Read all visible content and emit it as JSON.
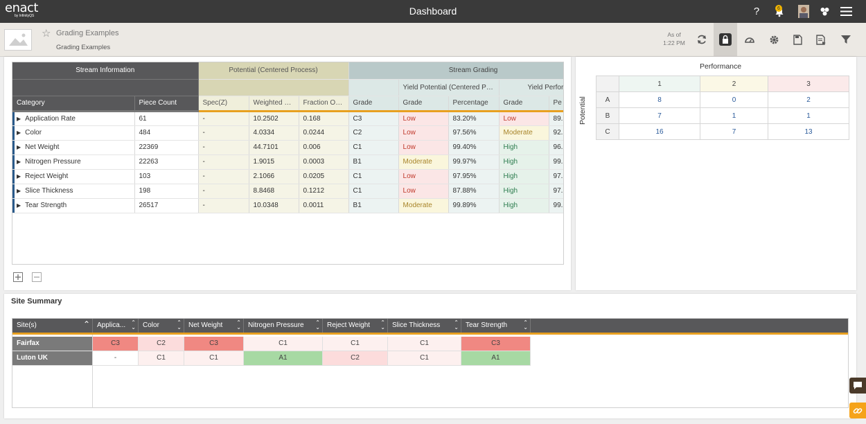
{
  "topbar": {
    "logo_text": "enact",
    "logo_sub": "by InfinityQS",
    "title": "Dashboard",
    "help": "?",
    "notification_count": "6"
  },
  "subheader": {
    "title": "Grading Examples",
    "subtitle": "Grading Examples",
    "as_of_label": "As of",
    "as_of_time": "1:22 PM"
  },
  "grid": {
    "groups": {
      "stream_info": "Stream Information",
      "potential": "Potential (Centered Process)",
      "stream_grading": "Stream Grading",
      "yield_potential": "Yield Potential (Centered Proc...",
      "yield_perf": "Yield Perform"
    },
    "columns": [
      "Category",
      "Piece Count",
      "Spec(Z)",
      "Weighted Fr...",
      "Fraction OOS",
      "Grade",
      "Grade",
      "Percentage",
      "Grade",
      "Pe"
    ],
    "rows": [
      [
        "Application Rate",
        "61",
        "-",
        "10.2502",
        "0.168",
        "C3",
        "Low",
        "83.20%",
        "Low",
        "89."
      ],
      [
        "Color",
        "484",
        "-",
        "4.0334",
        "0.0244",
        "C2",
        "Low",
        "97.56%",
        "Moderate",
        "92."
      ],
      [
        "Net Weight",
        "22369",
        "-",
        "44.7101",
        "0.006",
        "C1",
        "Low",
        "99.40%",
        "High",
        "96."
      ],
      [
        "Nitrogen Pressure",
        "22263",
        "-",
        "1.9015",
        "0.0003",
        "B1",
        "Moderate",
        "99.97%",
        "High",
        "99."
      ],
      [
        "Reject Weight",
        "103",
        "-",
        "2.1066",
        "0.0205",
        "C1",
        "Low",
        "97.95%",
        "High",
        "97."
      ],
      [
        "Slice Thickness",
        "198",
        "-",
        "8.8468",
        "0.1212",
        "C1",
        "Low",
        "87.88%",
        "High",
        "97."
      ],
      [
        "Tear Strength",
        "26517",
        "-",
        "10.0348",
        "0.0011",
        "B1",
        "Moderate",
        "99.89%",
        "High",
        "99."
      ]
    ]
  },
  "matrix": {
    "title": "Performance",
    "side": "Potential",
    "cols": [
      "1",
      "2",
      "3"
    ],
    "rows": [
      {
        "label": "A",
        "values": [
          "8",
          "0",
          "2"
        ]
      },
      {
        "label": "B",
        "values": [
          "7",
          "1",
          "1"
        ]
      },
      {
        "label": "C",
        "values": [
          "16",
          "7",
          "13"
        ]
      }
    ]
  },
  "site_summary": {
    "title": "Site Summary",
    "columns": [
      "Site(s)",
      "Applica...",
      "Color",
      "Net Weight",
      "Nitrogen Pressure",
      "Reject Weight",
      "Slice Thickness",
      "Tear Strength"
    ],
    "rows": [
      {
        "site": "Fairfax",
        "values": [
          "C3",
          "C2",
          "C3",
          "C1",
          "C1",
          "C1",
          "C3"
        ]
      },
      {
        "site": "Luton UK",
        "values": [
          "-",
          "C1",
          "C1",
          "A1",
          "C2",
          "C1",
          "A1"
        ]
      }
    ]
  },
  "colors": {
    "accent": "#e8a020",
    "header_dark": "#58585a",
    "marker_blue": "#2a5a8a",
    "fab_orange": "#f5a31a"
  }
}
